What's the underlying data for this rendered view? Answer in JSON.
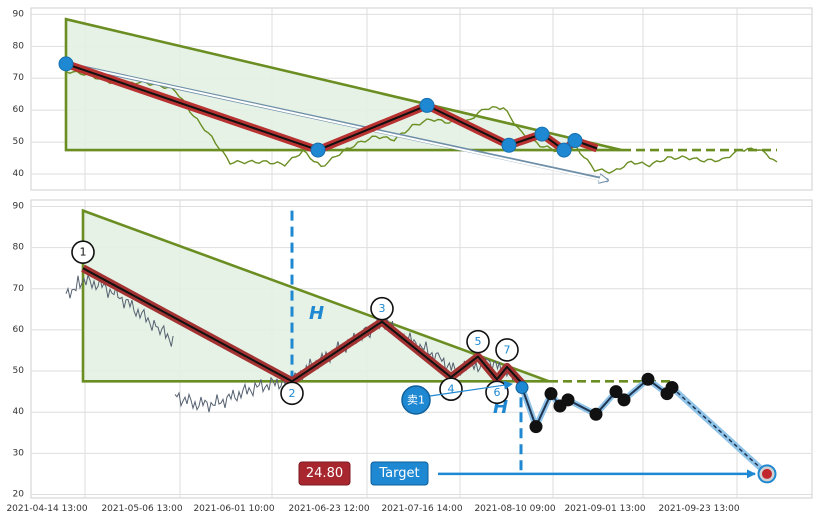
{
  "chart_data": [
    {
      "type": "line",
      "panel": "top",
      "ylim": [
        35,
        92
      ],
      "yticks": [
        40,
        50,
        60,
        70,
        80,
        90
      ],
      "grid": true,
      "series": [
        {
          "values": [
            74,
            72,
            69,
            66,
            70,
            68,
            65,
            60,
            52,
            43,
            42,
            45,
            43,
            46,
            44,
            47,
            49,
            50,
            52,
            55,
            56,
            58,
            57,
            60,
            59,
            54,
            49,
            46,
            50,
            42,
            40,
            42,
            44,
            45,
            44,
            46,
            45,
            47,
            46,
            45
          ]
        }
      ],
      "pattern_points": [
        {
          "x": 0.0,
          "y": 74.5
        },
        {
          "x": 0.43,
          "y": 47.5
        },
        {
          "x": 0.6,
          "y": 61.5
        },
        {
          "x": 0.73,
          "y": 49
        },
        {
          "x": 0.79,
          "y": 52.5
        },
        {
          "x": 0.83,
          "y": 47.5
        },
        {
          "x": 0.845,
          "y": 50.5
        },
        {
          "x": 0.88,
          "y": 48
        }
      ],
      "triangle": {
        "top": 88.5,
        "base": 47.5
      },
      "projection_arrow": {
        "from": 74.5,
        "to": 38
      }
    },
    {
      "type": "line",
      "panel": "bottom",
      "ylim": [
        20,
        91
      ],
      "yticks": [
        20,
        30,
        40,
        50,
        60,
        70,
        80,
        90
      ],
      "grid": true,
      "xticks": [
        "2021-04-14 13:00",
        "2021-05-06 13:00",
        "2021-06-01 10:00",
        "2021-06-23 12:00",
        "2021-07-16 14:00",
        "2021-08-10 09:00",
        "2021-09-01 13:00",
        "2021-09-23 13:00"
      ],
      "pattern_points": [
        {
          "label": "1",
          "y": 75
        },
        {
          "label": "2",
          "y": 47.5
        },
        {
          "label": "3",
          "y": 62
        },
        {
          "label": "4",
          "y": 48.5
        },
        {
          "label": "5",
          "y": 53.5
        },
        {
          "label": "6",
          "y": 48
        },
        {
          "label": "7",
          "y": 51
        },
        {
          "label": "",
          "y": 47
        }
      ],
      "forward_path": [
        46,
        36.5,
        44.5,
        41.5,
        43,
        39.5,
        45,
        43,
        48,
        44.5,
        46,
        25
      ],
      "triangle": {
        "top": 89,
        "base": 47.5
      },
      "height_label": "H",
      "sell_label": "卖1",
      "target_value": "24.80",
      "target_label": "Target"
    }
  ],
  "colors": {
    "price_top": "#6b8e23",
    "price_bottom": "#556070",
    "triangle": "#6b8e23",
    "triangle_fill": "#e3f1e3",
    "pattern": "#c13434",
    "accent": "#1e88d2",
    "target_red": "#c0282e"
  }
}
